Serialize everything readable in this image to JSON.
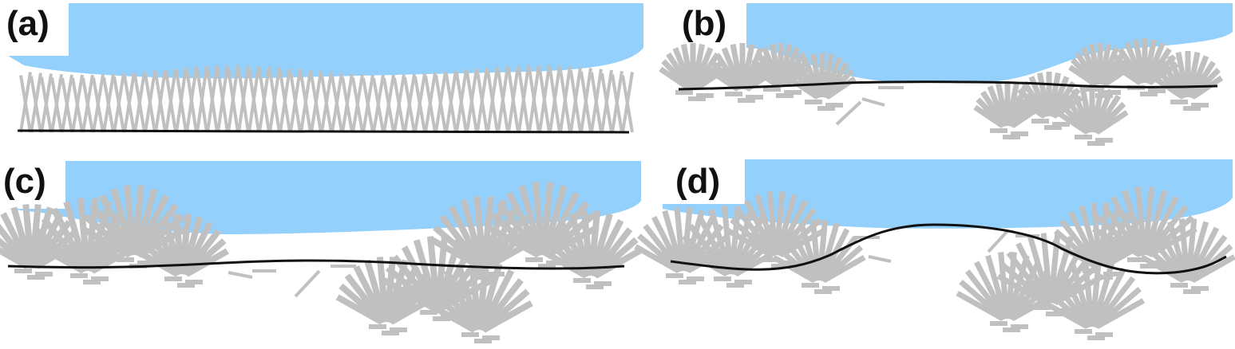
{
  "figure": {
    "panels": [
      {
        "id": "a",
        "label": "(a)"
      },
      {
        "id": "b",
        "label": "(b)"
      },
      {
        "id": "c",
        "label": "(c)"
      },
      {
        "id": "d",
        "label": "(d)"
      }
    ],
    "colors": {
      "water": "#93d0fb",
      "grass": "#c0c0c0",
      "ground_line": "#111111",
      "background": "#ffffff"
    }
  }
}
